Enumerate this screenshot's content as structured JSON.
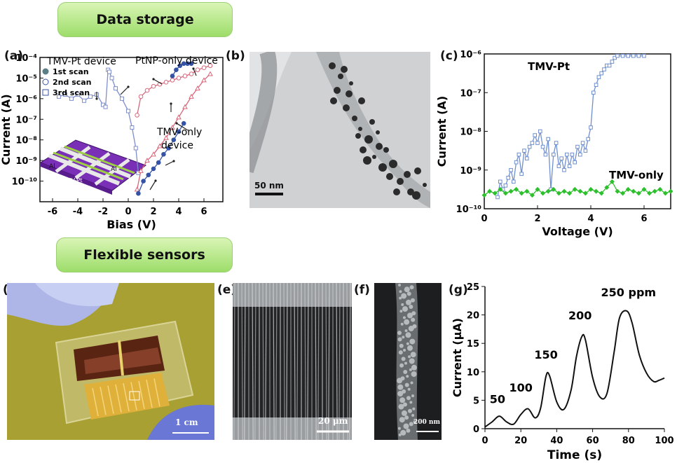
{
  "banners": {
    "top": "Data storage",
    "bottom": "Flexible sensors"
  },
  "panels": {
    "a": "(a)",
    "b": "(b)",
    "c": "(c)",
    "d": "(d)",
    "e": "(e)",
    "f": "(f)",
    "g": "(g)"
  },
  "scalebars": {
    "b": "50 nm",
    "d": "1 cm",
    "e": "20 μm",
    "f": "200 nm"
  },
  "chart_data": [
    {
      "id": "a",
      "type": "line",
      "title": "",
      "xlabel": "Bias (V)",
      "ylabel": "Current (A)",
      "xlim": [
        -7,
        7.5
      ],
      "ylim_log10": [
        -11,
        -4
      ],
      "xticks": [
        -6,
        -4,
        -2,
        0,
        2,
        4,
        6
      ],
      "yticks": [
        "10⁻¹⁰",
        "10⁻⁹",
        "10⁻⁸",
        "10⁻⁷",
        "10⁻⁶",
        "10⁻⁵",
        "10⁻⁴"
      ],
      "legend_title": "TMV-Pt device",
      "legend": [
        "1st scan",
        "2nd scan",
        "3rd scan"
      ],
      "annotations": {
        "ptnp": "PtNP-only device",
        "tmv1": "TMV-only",
        "tmv2": "device"
      },
      "inset_labels": [
        "Al",
        "Al",
        "TMV-Pt"
      ],
      "series": [
        {
          "name": "TMV-Pt 2nd/3rd scan",
          "x": [
            -5.5,
            -5.0,
            -4.5,
            -4.0,
            -3.5,
            -3.0,
            -2.5,
            -2.0,
            -1.8,
            -1.6,
            -1.5,
            -1.3,
            -1.0,
            -0.5,
            0.0,
            0.3,
            0.6,
            0.8
          ],
          "log10y": [
            -5.9,
            -5.8,
            -6.0,
            -5.8,
            -6.1,
            -5.9,
            -5.8,
            -6.3,
            -6.4,
            -4.6,
            -4.7,
            -5.0,
            -5.5,
            -6.0,
            -6.6,
            -7.4,
            -8.4,
            -9.6
          ]
        },
        {
          "name": "PtNP-only device",
          "x": [
            0.7,
            1.0,
            1.5,
            2.0,
            2.5,
            3.0,
            3.5,
            4.0,
            4.5,
            5.0,
            5.5,
            6.0,
            6.5
          ],
          "log10y": [
            -6.8,
            -5.9,
            -5.6,
            -5.4,
            -5.3,
            -5.2,
            -5.1,
            -5.0,
            -4.9,
            -4.8,
            -4.6,
            -4.5,
            -4.4
          ]
        },
        {
          "name": "1st scan",
          "x": [
            3.5,
            3.8,
            4.1,
            4.4,
            4.7,
            5.0
          ],
          "log10y": [
            -4.9,
            -4.6,
            -4.4,
            -4.3,
            -4.3,
            -4.3
          ]
        },
        {
          "name": "TMV-only device",
          "x": [
            0.7,
            1.0,
            1.5,
            2.0,
            2.5,
            3.0,
            3.5,
            4.0,
            4.5,
            5.0,
            5.5,
            6.0,
            6.5
          ],
          "log10y": [
            -10.4,
            -9.5,
            -9.0,
            -8.7,
            -8.3,
            -7.9,
            -7.4,
            -6.9,
            -6.4,
            -5.9,
            -5.5,
            -5.1,
            -4.8
          ]
        },
        {
          "name": "TMV-only filled",
          "x": [
            0.8,
            1.2,
            1.6,
            2.0,
            2.4,
            2.8,
            3.2,
            3.6,
            4.0,
            4.4
          ],
          "log10y": [
            -10.6,
            -10.0,
            -9.7,
            -9.4,
            -9.1,
            -8.7,
            -8.4,
            -8.0,
            -7.6,
            -7.2
          ]
        }
      ]
    },
    {
      "id": "c",
      "type": "line",
      "title": "",
      "xlabel": "Voltage (V)",
      "ylabel": "Current (A)",
      "xlim": [
        0,
        7
      ],
      "ylim_log10": [
        -10,
        -6
      ],
      "xticks": [
        0,
        2,
        4,
        6
      ],
      "yticks": [
        "10⁻¹⁰",
        "10⁻⁹",
        "10⁻⁸",
        "10⁻⁷",
        "10⁻⁶"
      ],
      "annotations": {
        "tmvpt": "TMV-Pt",
        "tmvonly": "TMV-only"
      },
      "series": [
        {
          "name": "TMV-Pt",
          "color": "#6f8fd0",
          "x": [
            0.5,
            0.6,
            0.7,
            0.8,
            0.9,
            1.0,
            1.1,
            1.2,
            1.3,
            1.4,
            1.5,
            1.6,
            1.7,
            1.8,
            1.9,
            2.0,
            2.1,
            2.2,
            2.3,
            2.4,
            2.5,
            2.6,
            2.7,
            2.8,
            2.9,
            3.0,
            3.1,
            3.2,
            3.3,
            3.4,
            3.5,
            3.6,
            3.7,
            3.8,
            3.9,
            4.0,
            4.1,
            4.2,
            4.3,
            4.4,
            4.5,
            4.6,
            4.7,
            4.8,
            4.9,
            5.0,
            5.2,
            5.4,
            5.6,
            5.8,
            6.0
          ],
          "log10y": [
            -9.7,
            -9.3,
            -9.5,
            -9.4,
            -9.2,
            -9.0,
            -9.3,
            -8.8,
            -8.6,
            -9.1,
            -8.5,
            -8.7,
            -8.4,
            -8.3,
            -8.1,
            -8.3,
            -8.0,
            -8.4,
            -8.6,
            -8.2,
            -9.5,
            -8.6,
            -8.3,
            -8.9,
            -8.7,
            -9.0,
            -8.6,
            -8.9,
            -8.6,
            -8.8,
            -8.4,
            -8.6,
            -8.3,
            -8.5,
            -8.2,
            -7.9,
            -7.0,
            -6.8,
            -6.6,
            -6.5,
            -6.4,
            -6.3,
            -6.3,
            -6.2,
            -6.1,
            -6.05,
            -6.05,
            -6.05,
            -6.05,
            -6.05,
            -6.05
          ]
        },
        {
          "name": "TMV-only",
          "color": "#2cc02c",
          "x": [
            0.0,
            0.2,
            0.4,
            0.6,
            0.8,
            1.0,
            1.2,
            1.4,
            1.6,
            1.8,
            2.0,
            2.2,
            2.4,
            2.6,
            2.8,
            3.0,
            3.2,
            3.4,
            3.6,
            3.8,
            4.0,
            4.2,
            4.4,
            4.6,
            4.8,
            5.0,
            5.2,
            5.4,
            5.6,
            5.8,
            6.0,
            6.2,
            6.4,
            6.6,
            6.8,
            7.0
          ],
          "log10y": [
            -9.65,
            -9.55,
            -9.6,
            -9.5,
            -9.6,
            -9.55,
            -9.5,
            -9.6,
            -9.55,
            -9.65,
            -9.5,
            -9.6,
            -9.55,
            -9.5,
            -9.6,
            -9.55,
            -9.6,
            -9.5,
            -9.55,
            -9.6,
            -9.5,
            -9.55,
            -9.6,
            -9.45,
            -9.3,
            -9.55,
            -9.6,
            -9.5,
            -9.55,
            -9.6,
            -9.5,
            -9.6,
            -9.55,
            -9.5,
            -9.6,
            -9.55
          ]
        }
      ]
    },
    {
      "id": "g",
      "type": "line",
      "title": "",
      "xlabel": "Time (s)",
      "ylabel": "Current (μA)",
      "xlim": [
        0,
        100
      ],
      "ylim": [
        0,
        25
      ],
      "xticks": [
        0,
        20,
        40,
        60,
        80,
        100
      ],
      "yticks": [
        0,
        5,
        10,
        15,
        20,
        25
      ],
      "peak_labels": [
        "50",
        "100",
        "150",
        "200",
        "250 ppm"
      ],
      "series": [
        {
          "name": "response",
          "x": [
            0,
            4,
            8,
            12,
            16,
            20,
            24,
            28,
            31,
            34,
            36,
            40,
            44,
            48,
            51,
            54,
            56,
            60,
            64,
            68,
            72,
            75,
            79,
            82,
            86,
            90,
            94,
            97,
            100
          ],
          "y": [
            0.3,
            1.2,
            2.2,
            1.2,
            0.8,
            2.5,
            3.5,
            1.9,
            3.6,
            9.2,
            9.3,
            4.7,
            3.4,
            6.8,
            12.7,
            16.2,
            15.6,
            9.0,
            5.6,
            6.2,
            13.5,
            19.5,
            20.7,
            18.6,
            13.0,
            9.8,
            8.3,
            8.5,
            8.9
          ]
        }
      ]
    }
  ]
}
